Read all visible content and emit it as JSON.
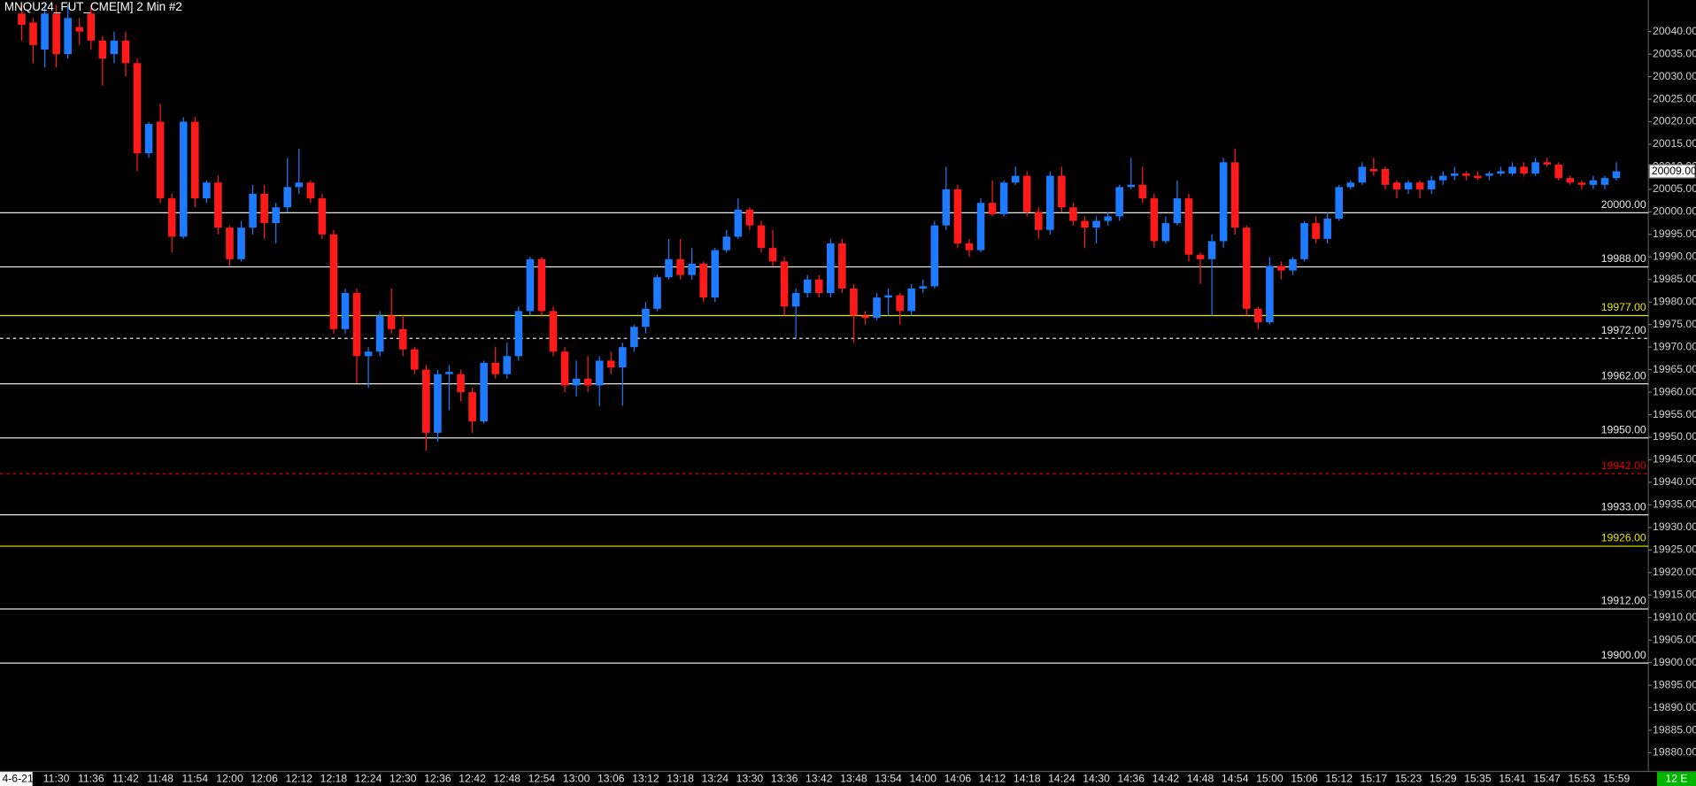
{
  "chart_data": {
    "type": "candlestick",
    "title": "MNQU24_FUT_CME[M]  2 Min  #2",
    "badge": "12 E",
    "up_color": "#1e7bff",
    "down_color": "#ff1a1a",
    "ylim": [
      19876,
      20047
    ],
    "yticks": [
      {
        "value": 19880,
        "label": "19880.00"
      },
      {
        "value": 19885,
        "label": "19885.00"
      },
      {
        "value": 19890,
        "label": "19890.00"
      },
      {
        "value": 19895,
        "label": "19895.00"
      },
      {
        "value": 19900,
        "label": "19900.00"
      },
      {
        "value": 19905,
        "label": "19905.00"
      },
      {
        "value": 19910,
        "label": "19910.00"
      },
      {
        "value": 19915,
        "label": "19915.00"
      },
      {
        "value": 19920,
        "label": "19920.00"
      },
      {
        "value": 19925,
        "label": "19925.00"
      },
      {
        "value": 19930,
        "label": "19930.00"
      },
      {
        "value": 19935,
        "label": "19935.00"
      },
      {
        "value": 19940,
        "label": "19940.00"
      },
      {
        "value": 19945,
        "label": "19945.00"
      },
      {
        "value": 19950,
        "label": "19950.00"
      },
      {
        "value": 19955,
        "label": "19955.00"
      },
      {
        "value": 19960,
        "label": "19960.00"
      },
      {
        "value": 19965,
        "label": "19965.00"
      },
      {
        "value": 19970,
        "label": "19970.00"
      },
      {
        "value": 19975,
        "label": "19975.00"
      },
      {
        "value": 19980,
        "label": "19980.00"
      },
      {
        "value": 19985,
        "label": "19985.00"
      },
      {
        "value": 19990,
        "label": "19990.00"
      },
      {
        "value": 19995,
        "label": "19995.00"
      },
      {
        "value": 20000,
        "label": "20000.00"
      },
      {
        "value": 20005,
        "label": "20005.00"
      },
      {
        "value": 20010,
        "label": "20010.00"
      },
      {
        "value": 20015,
        "label": "20015.00"
      },
      {
        "value": 20020,
        "label": "20020.00"
      },
      {
        "value": 20025,
        "label": "20025.00"
      },
      {
        "value": 20030,
        "label": "20030.00"
      },
      {
        "value": 20035,
        "label": "20035.00"
      },
      {
        "value": 20040,
        "label": "20040.00"
      }
    ],
    "levels": [
      {
        "value": 20000,
        "label": "20000.00",
        "color": "#e6e6e6",
        "dashed": false
      },
      {
        "value": 19988,
        "label": "19988.00",
        "color": "#e6e6e6",
        "dashed": false
      },
      {
        "value": 19977,
        "label": "19977.00",
        "color": "#e6e600",
        "dashed": false
      },
      {
        "value": 19972,
        "label": "19972.00",
        "color": "#e6e6e6",
        "dashed": true
      },
      {
        "value": 19962,
        "label": "19962.00",
        "color": "#e6e6e6",
        "dashed": false
      },
      {
        "value": 19950,
        "label": "19950.00",
        "color": "#e6e6e6",
        "dashed": false
      },
      {
        "value": 19942,
        "label": "19942.00",
        "color": "#e00000",
        "dashed": true
      },
      {
        "value": 19933,
        "label": "19933.00",
        "color": "#e6e6e6",
        "dashed": false
      },
      {
        "value": 19926,
        "label": "19926.00",
        "color": "#e6e600",
        "dashed": false
      },
      {
        "value": 19912,
        "label": "19912.00",
        "color": "#e6e6e6",
        "dashed": false
      },
      {
        "value": 19900,
        "label": "19900.00",
        "color": "#e6e6e6",
        "dashed": false
      }
    ],
    "last_price": {
      "value": 20009,
      "label": "20009.00"
    },
    "categories": [
      "4-6-21",
      null,
      null,
      "11:30",
      null,
      null,
      "11:36",
      null,
      null,
      "11:42",
      null,
      null,
      "11:48",
      null,
      null,
      "11:54",
      null,
      null,
      "12:00",
      null,
      null,
      "12:06",
      null,
      null,
      "12:12",
      null,
      null,
      "12:18",
      null,
      null,
      "12:24",
      null,
      null,
      "12:30",
      null,
      null,
      "12:36",
      null,
      null,
      "12:42",
      null,
      null,
      "12:48",
      null,
      null,
      "12:54",
      null,
      null,
      "13:00",
      null,
      null,
      "13:06",
      null,
      null,
      "13:12",
      null,
      null,
      "13:18",
      null,
      null,
      "13:24",
      null,
      null,
      "13:30",
      null,
      null,
      "13:36",
      null,
      null,
      "13:42",
      null,
      null,
      "13:48",
      null,
      null,
      "13:54",
      null,
      null,
      "14:00",
      null,
      null,
      "14:06",
      null,
      null,
      "14:12",
      null,
      null,
      "14:18",
      null,
      null,
      "14:24",
      null,
      null,
      "14:30",
      null,
      null,
      "14:36",
      null,
      null,
      "14:42",
      null,
      null,
      "14:48",
      null,
      null,
      "14:54",
      null,
      null,
      "15:00",
      null,
      null,
      "15:06",
      null,
      null,
      "15:12",
      null,
      null,
      "15:17",
      null,
      null,
      "15:23",
      null,
      null,
      "15:29",
      null,
      null,
      "15:35",
      null,
      null,
      "15:41",
      null,
      null,
      "15:47",
      null,
      null,
      "15:53",
      null,
      null,
      "15:59"
    ],
    "open": [
      20044,
      20042,
      20036,
      20044,
      20035,
      20041,
      20044,
      20038,
      20035,
      20038,
      20033,
      20013,
      20020,
      20003,
      19994.5,
      20020,
      20003,
      20006.5,
      19996.5,
      19989.5,
      19996.5,
      20004,
      19997.5,
      20001,
      20005.5,
      20006.5,
      20003,
      19995,
      19974,
      19982,
      19968,
      19969,
      19977,
      19974,
      19969.5,
      19965,
      19951,
      19964,
      19964,
      19960,
      19953.5,
      19966.5,
      19964,
      19968,
      19978,
      19989.5,
      19978,
      19969,
      19961.5,
      19963,
      19961.5,
      19967,
      19965.5,
      19970,
      19974.5,
      19978.5,
      19985.5,
      19989.5,
      19986,
      19988.5,
      19981,
      19991.5,
      19994.5,
      20000.5,
      19997,
      19992,
      19989,
      19979,
      19982,
      19985,
      19982,
      19993,
      19983,
      19977,
      19976.5,
      19981,
      19981.5,
      19978,
      19983,
      19983.5,
      19997,
      20005,
      19993,
      19991.5,
      20002,
      19999.5,
      20006.5,
      20008,
      20000,
      19996,
      20008,
      20001,
      19998,
      19996.5,
      19998,
      19999,
      20005.5,
      20006,
      20003,
      19993.5,
      19997.5,
      20003,
      19990.5,
      19989.5,
      19993.5,
      20011,
      19996.5,
      19978.5,
      19975.5,
      19988,
      19987,
      19989.5,
      19997.5,
      19994,
      19998.5,
      20005.5,
      20006.5,
      20009.5,
      20009.5,
      20006.5,
      20005,
      20006.5,
      20005,
      20007,
      20008,
      20008.5,
      20008,
      20008,
      20008.5,
      20008.5,
      20010,
      20008.5,
      20011,
      20010.5,
      20007.5,
      20006.5,
      20006,
      20006,
      20007.5
    ],
    "high": [
      20046,
      20043,
      20046,
      20046,
      20046,
      20043,
      20046,
      20039,
      20040,
      20040,
      20034,
      20020,
      20024,
      20004,
      20021,
      20021,
      20007,
      20008,
      19997,
      19998,
      20006,
      20006,
      20002,
      20012,
      20014,
      20007,
      20004,
      19996,
      19983,
      19983,
      19970,
      19978,
      19983,
      19977,
      19970,
      19966,
      19965,
      19966,
      19965,
      19961,
      19967,
      19970,
      19971,
      19979,
      19990,
      19990,
      19979,
      19970,
      19967,
      19968,
      19968,
      19969,
      19971,
      19975,
      19980,
      19986,
      19994,
      19994,
      19992,
      19989,
      19992,
      19996,
      20003,
      20001,
      19998,
      19996,
      19990,
      19983,
      19986,
      19986,
      19994,
      19994,
      19984,
      19978,
      19982,
      19983,
      19982,
      19984,
      19985,
      19998,
      20010,
      20006,
      19994,
      20003,
      20007,
      20007,
      20010,
      20009,
      20001,
      20009,
      20010,
      20002,
      19999,
      19999,
      20000,
      20006,
      20012,
      20010,
      20004,
      19999,
      20007,
      20004,
      19991,
      19995,
      20012,
      20014,
      19997,
      19979,
      19990,
      19989,
      19990,
      19998,
      19999,
      20000,
      20006,
      20007,
      20011,
      20012,
      20010,
      20007,
      20007,
      20007,
      20008,
      20009,
      20010,
      20009,
      20009,
      20009,
      20010,
      20011,
      20011,
      20012,
      20012,
      20011,
      20008,
      20007,
      20008,
      20008,
      20011
    ],
    "low": [
      20038,
      20033,
      20032,
      20032,
      20034,
      20037,
      20036,
      20028,
      20033,
      20030,
      20009,
      20012,
      20002,
      19991,
      19994,
      20001,
      20002,
      19995,
      19988,
      19989,
      19995,
      19994,
      19993,
      20000,
      20004,
      20002,
      19994,
      19973,
      19973,
      19962,
      19961,
      19968,
      19973,
      19968,
      19964,
      19947,
      19949,
      19956,
      19958,
      19951,
      19953,
      19963,
      19963,
      19967,
      19977,
      19977,
      19968,
      19960,
      19959,
      19960,
      19957,
      19964,
      19957,
      19969,
      19973,
      19978,
      19985,
      19985,
      19985,
      19980,
      19980,
      19991,
      19994,
      19996,
      19991,
      19988,
      19977,
      19972,
      19981,
      19981,
      19981,
      19982,
      19971,
      19975,
      19976,
      19977,
      19975,
      19977,
      19982,
      19983,
      19996,
      19992,
      19990,
      19991,
      19999,
      19999,
      20006,
      19999,
      19994,
      19995,
      20000,
      19997,
      19992,
      19993,
      19997,
      19998,
      20005,
      20002,
      19992,
      19993,
      19997,
      19989,
      19984,
      19977,
      19992,
      19995,
      19977,
      19974,
      19975,
      19985,
      19986,
      19989,
      19993,
      19993,
      19998,
      20005,
      20006,
      20008,
      20005,
      20003,
      20004,
      20003,
      20004,
      20006,
      20007,
      20007,
      20007,
      20007,
      20008,
      20008,
      20008,
      20008,
      20010,
      20007,
      20006,
      20005,
      20005,
      20005,
      20007
    ],
    "close": [
      20041.5,
      20037,
      20044,
      20035,
      20043,
      20040,
      20038,
      20034,
      20038,
      20033,
      20013,
      20019.5,
      20003,
      19994.5,
      20020,
      20003,
      20006.5,
      19996.5,
      19989.5,
      19996.5,
      20004,
      19997.5,
      20001,
      20005.5,
      20006.5,
      20003,
      19995,
      19974,
      19982,
      19968,
      19969,
      19977,
      19974,
      19969.5,
      19965,
      19951,
      19964,
      19964.5,
      19960,
      19953.5,
      19966.5,
      19964,
      19968,
      19978,
      19989.5,
      19978,
      19969,
      19961.5,
      19963,
      19961.5,
      19967,
      19965.5,
      19970,
      19974.5,
      19978.5,
      19985.5,
      19989.5,
      19986,
      19988.5,
      19981,
      19991.5,
      19994.5,
      20000.5,
      19997,
      19992,
      19989,
      19979,
      19982,
      19985,
      19982,
      19993,
      19983,
      19977,
      19976.5,
      19981,
      19981.5,
      19978,
      19983,
      19983.5,
      19997,
      20005,
      19993,
      19991.5,
      20002,
      19999.5,
      20006.5,
      20008,
      20000,
      19996,
      20008,
      20001,
      19998,
      19996.5,
      19998,
      19999,
      20005.5,
      20006,
      20003,
      19993.5,
      19997.5,
      20003,
      19990.5,
      19989.5,
      19993.5,
      20011,
      19996.5,
      19978.5,
      19975.5,
      19988,
      19987,
      19989.5,
      19997.5,
      19994,
      19998.5,
      20005.5,
      20006.5,
      20010,
      20009,
      20006,
      20005,
      20006.5,
      20005,
      20007,
      20008,
      20008.5,
      20008,
      20007.5,
      20008.5,
      20009,
      20010,
      20008.5,
      20011,
      20010.5,
      20007.5,
      20006.5,
      20006,
      20007,
      20007.5,
      20009
    ]
  }
}
